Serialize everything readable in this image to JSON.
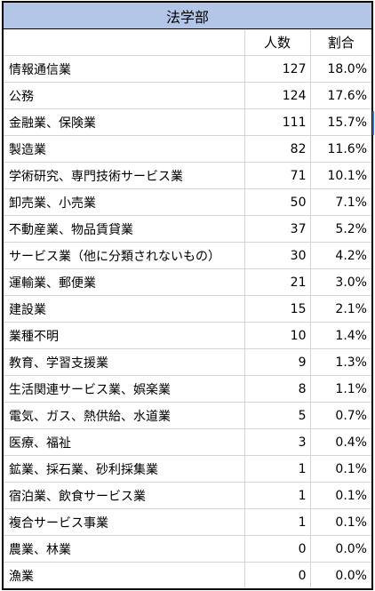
{
  "title": "法学部",
  "headers": {
    "count": "人数",
    "percent": "割合"
  },
  "rows": [
    {
      "name": "情報通信業",
      "count": "127",
      "percent": "18.0%"
    },
    {
      "name": "公務",
      "count": "124",
      "percent": "17.6%"
    },
    {
      "name": "金融業、保険業",
      "count": "111",
      "percent": "15.7%"
    },
    {
      "name": "製造業",
      "count": "82",
      "percent": "11.6%"
    },
    {
      "name": "学術研究、専門技術サービス業",
      "count": "71",
      "percent": "10.1%"
    },
    {
      "name": "卸売業、小売業",
      "count": "50",
      "percent": "7.1%"
    },
    {
      "name": "不動産業、物品賃貸業",
      "count": "37",
      "percent": "5.2%"
    },
    {
      "name": "サービス業（他に分類されないもの）",
      "count": "30",
      "percent": "4.2%"
    },
    {
      "name": "運輸業、郵便業",
      "count": "21",
      "percent": "3.0%"
    },
    {
      "name": "建設業",
      "count": "15",
      "percent": "2.1%"
    },
    {
      "name": "業種不明",
      "count": "10",
      "percent": "1.4%"
    },
    {
      "name": "教育、学習支援業",
      "count": "9",
      "percent": "1.3%"
    },
    {
      "name": "生活関連サービス業、娯楽業",
      "count": "8",
      "percent": "1.1%"
    },
    {
      "name": "電気、ガス、熱供給、水道業",
      "count": "5",
      "percent": "0.7%"
    },
    {
      "name": "医療、福祉",
      "count": "3",
      "percent": "0.4%"
    },
    {
      "name": "鉱業、採石業、砂利採集業",
      "count": "1",
      "percent": "0.1%"
    },
    {
      "name": "宿泊業、飲食サービス業",
      "count": "1",
      "percent": "0.1%"
    },
    {
      "name": "複合サービス事業",
      "count": "1",
      "percent": "0.1%"
    },
    {
      "name": "農業、林業",
      "count": "0",
      "percent": "0.0%"
    },
    {
      "name": "漁業",
      "count": "0",
      "percent": "0.0%"
    }
  ]
}
